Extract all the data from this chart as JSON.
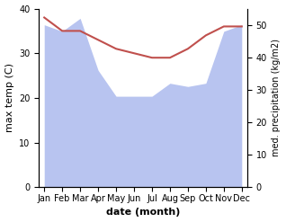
{
  "months": [
    "Jan",
    "Feb",
    "Mar",
    "Apr",
    "May",
    "Jun",
    "Jul",
    "Aug",
    "Sep",
    "Oct",
    "Nov",
    "Dec"
  ],
  "month_x": [
    0,
    1,
    2,
    3,
    4,
    5,
    6,
    7,
    8,
    9,
    10,
    11
  ],
  "temp": [
    38,
    35,
    35,
    33,
    31,
    30,
    29,
    29,
    31,
    34,
    36,
    36
  ],
  "precip": [
    50,
    48,
    52,
    36,
    28,
    28,
    28,
    32,
    31,
    32,
    48,
    50
  ],
  "temp_color": "#c0504d",
  "precip_color": "#b8c4f0",
  "temp_ylim": [
    0,
    40
  ],
  "precip_ylim": [
    0,
    55
  ],
  "temp_yticks": [
    0,
    10,
    20,
    30,
    40
  ],
  "precip_yticks": [
    0,
    10,
    20,
    30,
    40,
    50
  ],
  "xlabel": "date (month)",
  "ylabel_left": "max temp (C)",
  "ylabel_right": "med. precipitation (kg/m2)",
  "bg_color": "#ffffff",
  "figure_bg": "#ffffff"
}
